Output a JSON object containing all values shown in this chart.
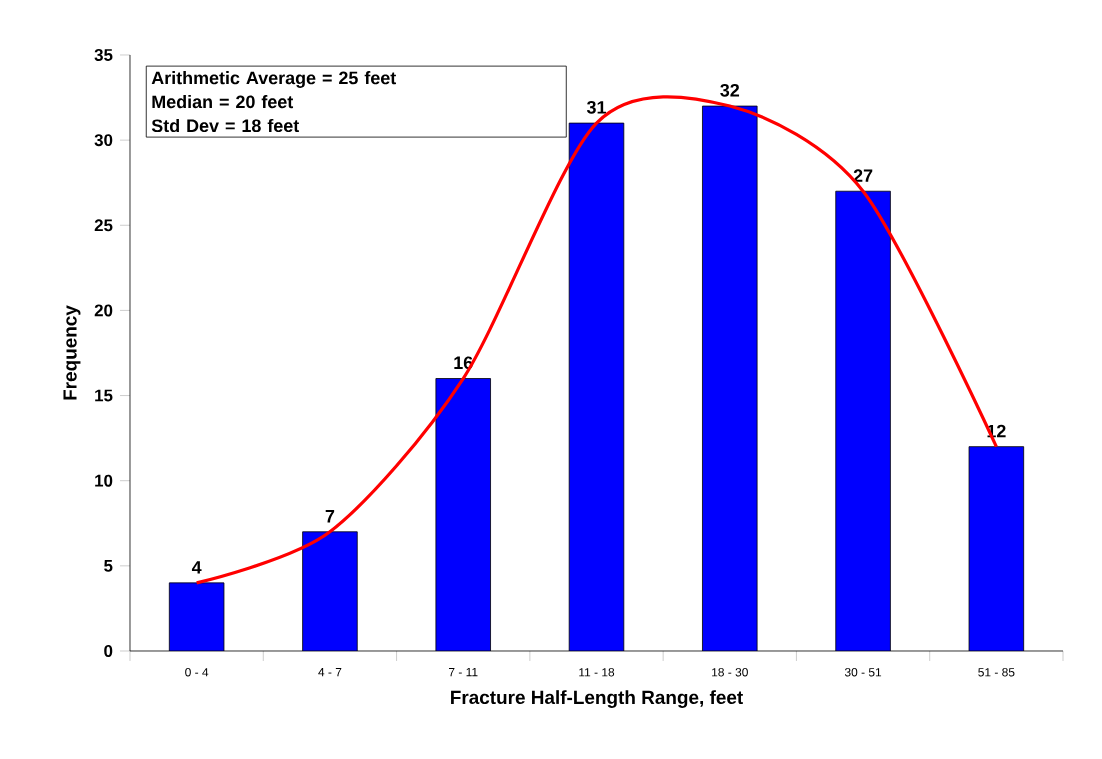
{
  "chart_data": {
    "type": "bar",
    "xlabel": "Fracture Half-Length Range, feet",
    "ylabel": "Frequency",
    "categories": [
      "0 - 4",
      "4 - 7",
      "7 - 11",
      "11 - 18",
      "18 - 30",
      "30 - 51",
      "51 - 85"
    ],
    "series": [
      {
        "color": "#0000ff",
        "values": [
          4,
          7,
          16,
          31,
          32,
          27,
          12
        ],
        "value_labels": [
          "4",
          "7",
          "16",
          "31",
          "32",
          "27",
          "12"
        ]
      },
      {
        "type": "line",
        "color": "#ff0000",
        "values": [
          4,
          7,
          16,
          31,
          32,
          27,
          12
        ]
      }
    ],
    "ylim": [
      0,
      35
    ],
    "yticks": [
      0,
      5,
      10,
      15,
      20,
      25,
      30,
      35
    ],
    "grid": false,
    "marker": "none",
    "line_style": "solid",
    "annotations": [
      "Arithmetic Average = 25 feet",
      "Median = 20 feet",
      "Std Dev = 18 feet"
    ]
  }
}
